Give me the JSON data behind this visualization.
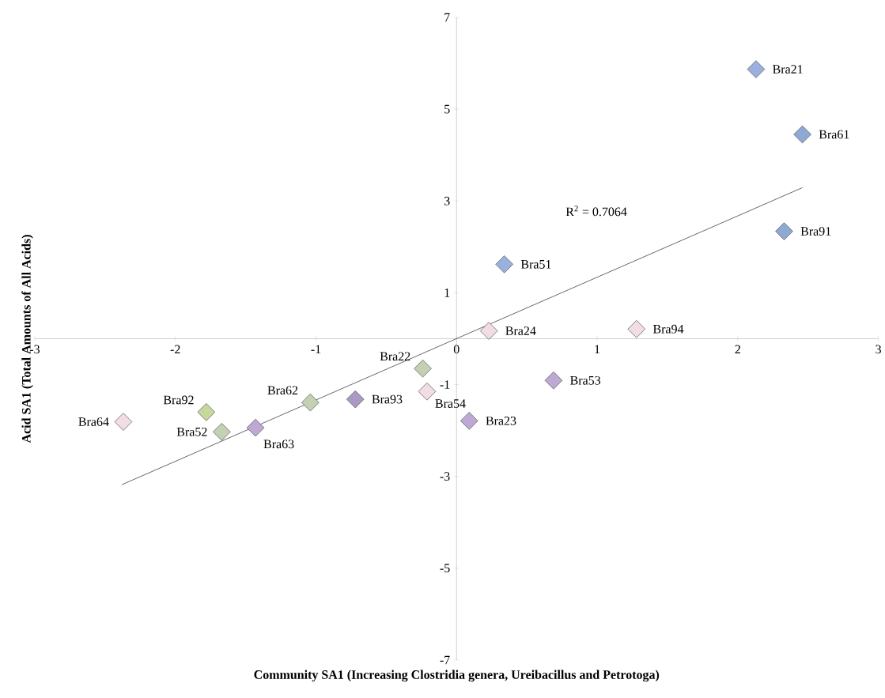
{
  "chart_data": {
    "type": "scatter",
    "xlabel": "Community SA1 (Increasing Clostridia genera, Ureibacillus and Petrotoga)",
    "ylabel": "Acid  SA1 (Total Amounts of All Acids)",
    "xlim": [
      -3,
      3
    ],
    "ylim": [
      -7,
      7
    ],
    "xticks": [
      -3,
      -2,
      -1,
      0,
      1,
      2,
      3
    ],
    "yticks": [
      -7,
      -5,
      -3,
      -1,
      1,
      3,
      5,
      7
    ],
    "marker": "diamond",
    "annotations": [
      "R$^{2}$ = 0.7064"
    ],
    "series": [
      {
        "name": "Bra21",
        "color": "#9bb0de",
        "x": [
          2.13
        ],
        "values": [
          5.87
        ]
      },
      {
        "name": "Bra61",
        "color": "#8eaad4",
        "x": [
          2.46
        ],
        "values": [
          4.45
        ]
      },
      {
        "name": "Bra91",
        "color": "#8eaad4",
        "x": [
          2.33
        ],
        "values": [
          2.34
        ]
      },
      {
        "name": "Bra51",
        "color": "#9bb0de",
        "x": [
          0.34
        ],
        "values": [
          1.62
        ]
      },
      {
        "name": "Bra24",
        "color": "#f2dce6",
        "x": [
          0.23
        ],
        "values": [
          0.17
        ]
      },
      {
        "name": "Bra94",
        "color": "#f2dce6",
        "x": [
          1.28
        ],
        "values": [
          0.21
        ]
      },
      {
        "name": "Bra22",
        "color": "#c4d0b4",
        "x": [
          -0.24
        ],
        "values": [
          -0.65
        ]
      },
      {
        "name": "Bra54",
        "color": "#f2dce6",
        "x": [
          -0.21
        ],
        "values": [
          -1.15
        ]
      },
      {
        "name": "Bra53",
        "color": "#bea8d4",
        "x": [
          0.69
        ],
        "values": [
          -0.91
        ]
      },
      {
        "name": "Bra23",
        "color": "#bea8d4",
        "x": [
          0.09
        ],
        "values": [
          -1.79
        ]
      },
      {
        "name": "Bra93",
        "color": "#a99ac4",
        "x": [
          -0.72
        ],
        "values": [
          -1.32
        ]
      },
      {
        "name": "Bra62",
        "color": "#c4d0b4",
        "x": [
          -1.04
        ],
        "values": [
          -1.39
        ]
      },
      {
        "name": "Bra92",
        "color": "#c6d89c",
        "x": [
          -1.78
        ],
        "values": [
          -1.6
        ]
      },
      {
        "name": "Bra52",
        "color": "#c4d0b4",
        "x": [
          -1.67
        ],
        "values": [
          -2.03
        ]
      },
      {
        "name": "Bra63",
        "color": "#bea8d4",
        "x": [
          -1.43
        ],
        "values": [
          -1.94
        ]
      },
      {
        "name": "Bra64",
        "color": "#f2dce6",
        "x": [
          -2.37
        ],
        "values": [
          -1.81
        ]
      },
      {
        "type": "line",
        "marker": "none",
        "color": "#404040",
        "x": [
          -2.38,
          2.46
        ],
        "values": [
          -3.18,
          3.29
        ]
      }
    ]
  }
}
